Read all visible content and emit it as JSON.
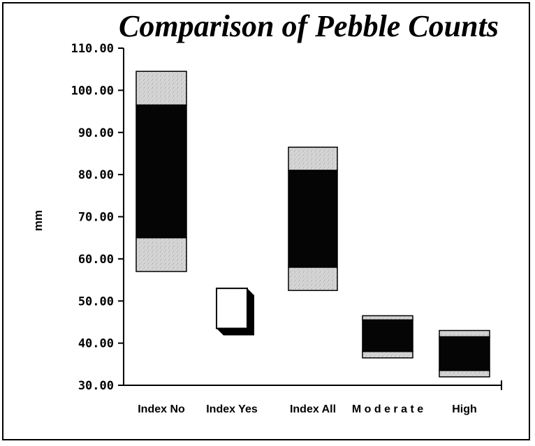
{
  "chart_data": {
    "type": "bar",
    "title": "Comparison of Pebble Counts",
    "xlabel": "",
    "ylabel": "mm",
    "ylim": [
      30,
      110
    ],
    "yticks": [
      "30.00",
      "40.00",
      "50.00",
      "60.00",
      "70.00",
      "80.00",
      "90.00",
      "100.00",
      "110.00"
    ],
    "categories": [
      "Index No",
      "Index Yes",
      "Index All",
      "M o d e r a t e",
      "High"
    ],
    "grid": false,
    "legend": "none",
    "boxes": [
      {
        "category": "Index No",
        "low": 57.0,
        "q1": 65.0,
        "q3": 96.5,
        "high": 104.5
      },
      {
        "category": "Index Yes",
        "low": 43.5,
        "q1": 43.5,
        "q3": 53.0,
        "high": 53.0
      },
      {
        "category": "Index All",
        "low": 52.5,
        "q1": 58.0,
        "q3": 81.0,
        "high": 86.5
      },
      {
        "category": "M o d e r a t e",
        "low": 36.5,
        "q1": 38.0,
        "q3": 45.5,
        "high": 46.5
      },
      {
        "category": "High",
        "low": 32.0,
        "q1": 33.5,
        "q3": 41.5,
        "high": 43.0
      }
    ],
    "colors": {
      "middle": "#050505",
      "outer": "#d2d2d2",
      "hollow": "#ffffff",
      "shadow": "#000000"
    }
  }
}
